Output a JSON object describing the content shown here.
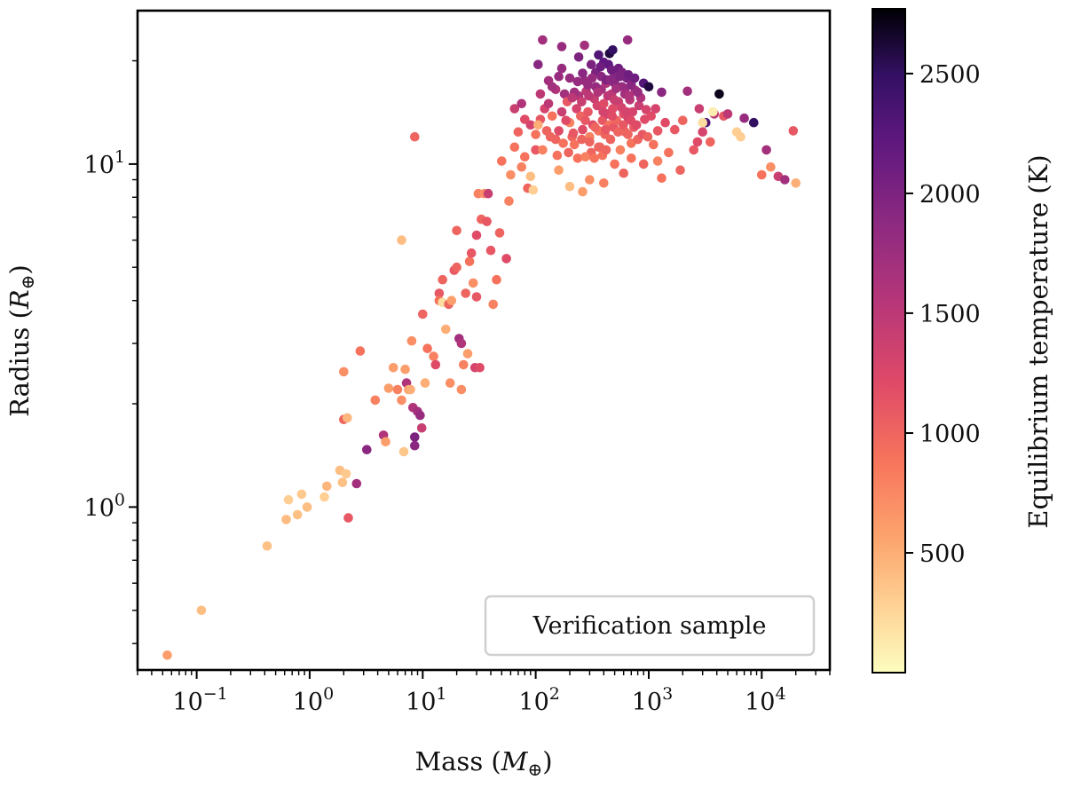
{
  "chart_data": {
    "type": "scatter",
    "title": "",
    "xlabel": "Mass (M⊕)",
    "ylabel": "Radius (R⊕)",
    "xlabel_base": "Mass (",
    "xlabel_symbol": "M",
    "xlabel_sub": "⊕",
    "xlabel_close": ")",
    "ylabel_base": "Radius (",
    "ylabel_symbol": "R",
    "ylabel_sub": "⊕",
    "ylabel_close": ")",
    "xscale": "log",
    "yscale": "log",
    "xlim": [
      0.03,
      40000
    ],
    "ylim": [
      0.335,
      28
    ],
    "x_ticks": [
      {
        "base": "10",
        "exp": "−1",
        "value": 0.1
      },
      {
        "base": "10",
        "exp": "0",
        "value": 1
      },
      {
        "base": "10",
        "exp": "1",
        "value": 10
      },
      {
        "base": "10",
        "exp": "2",
        "value": 100
      },
      {
        "base": "10",
        "exp": "3",
        "value": 1000
      },
      {
        "base": "10",
        "exp": "4",
        "value": 10000
      }
    ],
    "y_ticks": [
      {
        "base": "10",
        "exp": "0",
        "value": 1
      },
      {
        "base": "10",
        "exp": "1",
        "value": 10
      }
    ],
    "legend": {
      "label": "Verification sample",
      "location": "lower-right"
    },
    "colorbar": {
      "label": "Equilibrium temperature (K)",
      "colormap": "magma_r",
      "range": [
        0,
        2770
      ],
      "ticks": [
        500,
        1000,
        1500,
        2000,
        2500
      ],
      "tick_labels": [
        "500",
        "1000",
        "1500",
        "2000",
        "2500"
      ]
    },
    "points": [
      [
        0.055,
        0.37,
        600
      ],
      [
        0.11,
        0.5,
        400
      ],
      [
        0.42,
        0.77,
        380
      ],
      [
        0.62,
        0.92,
        420
      ],
      [
        0.65,
        1.05,
        300
      ],
      [
        0.78,
        0.95,
        380
      ],
      [
        0.85,
        1.09,
        330
      ],
      [
        0.95,
        1.0,
        400
      ],
      [
        1.35,
        1.07,
        300
      ],
      [
        1.42,
        1.15,
        450
      ],
      [
        1.85,
        1.28,
        400
      ],
      [
        1.95,
        1.18,
        380
      ],
      [
        2.1,
        1.25,
        330
      ],
      [
        2.2,
        0.93,
        1100
      ],
      [
        2.6,
        1.17,
        1700
      ],
      [
        2.0,
        1.8,
        1000
      ],
      [
        2.15,
        1.82,
        450
      ],
      [
        3.2,
        1.47,
        1900
      ],
      [
        2.8,
        2.85,
        900
      ],
      [
        2.0,
        2.48,
        700
      ],
      [
        3.8,
        2.05,
        800
      ],
      [
        4.5,
        1.62,
        1600
      ],
      [
        4.7,
        1.55,
        600
      ],
      [
        5.0,
        2.22,
        600
      ],
      [
        5.5,
        2.55,
        600
      ],
      [
        6.0,
        2.2,
        800
      ],
      [
        6.5,
        2.05,
        700
      ],
      [
        6.8,
        1.45,
        350
      ],
      [
        7.0,
        2.52,
        600
      ],
      [
        7.2,
        2.3,
        1600
      ],
      [
        7.5,
        2.2,
        600
      ],
      [
        7.8,
        2.2,
        500
      ],
      [
        8.0,
        3.05,
        700
      ],
      [
        8.2,
        1.95,
        1600
      ],
      [
        8.5,
        1.6,
        2000
      ],
      [
        8.5,
        1.51,
        1900
      ],
      [
        9.0,
        1.9,
        1700
      ],
      [
        9.5,
        1.85,
        1800
      ],
      [
        9.8,
        1.7,
        1400
      ],
      [
        10.5,
        2.3,
        500
      ],
      [
        6.5,
        6.0,
        400
      ],
      [
        10.0,
        3.65,
        1000
      ],
      [
        11.0,
        2.9,
        900
      ],
      [
        12.5,
        2.75,
        800
      ],
      [
        13.0,
        2.6,
        1200
      ],
      [
        14.0,
        4.2,
        1100
      ],
      [
        14.0,
        4.0,
        900
      ],
      [
        15.0,
        3.95,
        200
      ],
      [
        15.0,
        4.6,
        1000
      ],
      [
        16.0,
        3.3,
        500
      ],
      [
        17.0,
        3.9,
        1000
      ],
      [
        17.5,
        2.3,
        700
      ],
      [
        18.0,
        4.0,
        600
      ],
      [
        19.0,
        4.9,
        1100
      ],
      [
        20.0,
        5.0,
        1000
      ],
      [
        20.0,
        6.4,
        1000
      ],
      [
        21.0,
        3.1,
        1700
      ],
      [
        22.0,
        3.0,
        1600
      ],
      [
        22.0,
        2.2,
        700
      ],
      [
        23.0,
        2.6,
        800
      ],
      [
        24.0,
        4.2,
        1000
      ],
      [
        25.0,
        2.8,
        600
      ],
      [
        26.0,
        5.2,
        900
      ],
      [
        27.0,
        5.5,
        1100
      ],
      [
        28.0,
        4.5,
        700
      ],
      [
        29.0,
        2.55,
        1300
      ],
      [
        30.0,
        4.1,
        1100
      ],
      [
        30.0,
        6.2,
        1200
      ],
      [
        31.0,
        8.2,
        800
      ],
      [
        32.0,
        2.55,
        1200
      ],
      [
        33.0,
        6.9,
        1000
      ],
      [
        35.0,
        8.2,
        700
      ],
      [
        37.0,
        6.8,
        1100
      ],
      [
        38.0,
        8.2,
        1400
      ],
      [
        40.0,
        5.6,
        1100
      ],
      [
        42.0,
        3.9,
        800
      ],
      [
        45.0,
        4.6,
        900
      ],
      [
        48.0,
        6.3,
        1000
      ],
      [
        50.0,
        10.2,
        900
      ],
      [
        55.0,
        5.3,
        1200
      ],
      [
        58.0,
        7.8,
        800
      ],
      [
        60.0,
        9.3,
        700
      ],
      [
        65.0,
        11.2,
        900
      ],
      [
        70.0,
        12.4,
        1000
      ],
      [
        75.0,
        9.8,
        800
      ],
      [
        80.0,
        10.5,
        900
      ],
      [
        85.0,
        8.5,
        1000
      ],
      [
        90.0,
        9.2,
        400
      ],
      [
        95.0,
        8.4,
        300
      ],
      [
        100.0,
        11.0,
        1100
      ],
      [
        8.5,
        12.0,
        1000
      ],
      [
        65.0,
        14.5,
        1400
      ],
      [
        75.0,
        15.0,
        1600
      ],
      [
        80.0,
        13.5,
        1200
      ],
      [
        90.0,
        13.0,
        1300
      ],
      [
        110.0,
        13.5,
        1100
      ],
      [
        120.0,
        14.5,
        1300
      ],
      [
        130.0,
        15.0,
        1500
      ],
      [
        140.0,
        13.8,
        900
      ],
      [
        150.0,
        11.8,
        1000
      ],
      [
        160.0,
        12.5,
        1200
      ],
      [
        170.0,
        14.2,
        1400
      ],
      [
        180.0,
        16.0,
        1700
      ],
      [
        190.0,
        15.2,
        1100
      ],
      [
        200.0,
        13.2,
        800
      ],
      [
        210.0,
        12.0,
        1000
      ],
      [
        220.0,
        11.4,
        900
      ],
      [
        230.0,
        14.5,
        1300
      ],
      [
        240.0,
        15.8,
        1600
      ],
      [
        250.0,
        13.8,
        1000
      ],
      [
        260.0,
        12.6,
        1200
      ],
      [
        270.0,
        17.5,
        1800
      ],
      [
        280.0,
        16.3,
        1500
      ],
      [
        290.0,
        14.2,
        1100
      ],
      [
        300.0,
        12.0,
        800
      ],
      [
        310.0,
        10.8,
        1000
      ],
      [
        320.0,
        13.0,
        1200
      ],
      [
        330.0,
        15.5,
        1400
      ],
      [
        340.0,
        18.5,
        2000
      ],
      [
        350.0,
        14.8,
        1300
      ],
      [
        360.0,
        12.5,
        900
      ],
      [
        370.0,
        11.2,
        1000
      ],
      [
        380.0,
        16.5,
        1700
      ],
      [
        390.0,
        13.4,
        1100
      ],
      [
        400.0,
        15.0,
        1200
      ],
      [
        410.0,
        12.2,
        1000
      ],
      [
        420.0,
        17.2,
        1600
      ],
      [
        430.0,
        14.0,
        1300
      ],
      [
        440.0,
        19.5,
        2200
      ],
      [
        450.0,
        13.0,
        900
      ],
      [
        460.0,
        11.8,
        1000
      ],
      [
        470.0,
        16.0,
        1500
      ],
      [
        480.0,
        14.5,
        1200
      ],
      [
        490.0,
        12.8,
        1100
      ],
      [
        500.0,
        18.2,
        1900
      ],
      [
        520.0,
        13.4,
        1000
      ],
      [
        540.0,
        15.2,
        1400
      ],
      [
        560.0,
        11.0,
        800
      ],
      [
        580.0,
        16.8,
        1800
      ],
      [
        600.0,
        14.0,
        1200
      ],
      [
        620.0,
        12.4,
        1000
      ],
      [
        640.0,
        17.8,
        2000
      ],
      [
        660.0,
        13.6,
        1300
      ],
      [
        680.0,
        15.4,
        1500
      ],
      [
        700.0,
        11.5,
        900
      ],
      [
        720.0,
        14.2,
        1300
      ],
      [
        740.0,
        12.8,
        1100
      ],
      [
        760.0,
        16.4,
        1700
      ],
      [
        780.0,
        13.0,
        1200
      ],
      [
        800.0,
        11.8,
        1000
      ],
      [
        820.0,
        14.8,
        1400
      ],
      [
        850.0,
        15.6,
        1600
      ],
      [
        880.0,
        12.2,
        1100
      ],
      [
        900.0,
        17.2,
        2300
      ],
      [
        920.0,
        13.5,
        1200
      ],
      [
        950.0,
        14.4,
        1300
      ],
      [
        980.0,
        12.0,
        1000
      ],
      [
        1000.0,
        16.8,
        2600
      ],
      [
        1050.0,
        13.8,
        1200
      ],
      [
        1100.0,
        11.4,
        900
      ],
      [
        1150.0,
        14.5,
        1300
      ],
      [
        1200.0,
        12.5,
        1100
      ],
      [
        1300.0,
        16.2,
        1900
      ],
      [
        1400.0,
        13.2,
        1200
      ],
      [
        105.0,
        19.5,
        1900
      ],
      [
        130.0,
        17.5,
        1700
      ],
      [
        150.0,
        16.5,
        1600
      ],
      [
        170.0,
        19.0,
        1800
      ],
      [
        200.0,
        17.8,
        1800
      ],
      [
        220.0,
        16.2,
        1700
      ],
      [
        240.0,
        20.5,
        2000
      ],
      [
        260.0,
        18.4,
        1900
      ],
      [
        290.0,
        17.0,
        1800
      ],
      [
        310.0,
        19.5,
        2000
      ],
      [
        340.0,
        16.8,
        1800
      ],
      [
        360.0,
        20.8,
        2300
      ],
      [
        380.0,
        18.0,
        1900
      ],
      [
        400.0,
        19.8,
        2200
      ],
      [
        420.0,
        17.6,
        2000
      ],
      [
        450.0,
        21.0,
        2600
      ],
      [
        470.0,
        18.8,
        2100
      ],
      [
        500.0,
        17.2,
        1900
      ],
      [
        540.0,
        19.0,
        2100
      ],
      [
        580.0,
        18.5,
        2000
      ],
      [
        620.0,
        16.6,
        1800
      ],
      [
        660.0,
        18.2,
        2100
      ],
      [
        700.0,
        17.0,
        1900
      ],
      [
        750.0,
        17.8,
        2100
      ],
      [
        800.0,
        16.2,
        1800
      ],
      [
        115.0,
        23.0,
        1700
      ],
      [
        170.0,
        22.0,
        1800
      ],
      [
        270.0,
        22.2,
        1700
      ],
      [
        480.0,
        21.5,
        2500
      ],
      [
        650.0,
        23.0,
        1800
      ],
      [
        110.0,
        16.0,
        1500
      ],
      [
        125.0,
        12.5,
        1000
      ],
      [
        140.0,
        16.8,
        1700
      ],
      [
        160.0,
        18.0,
        1800
      ],
      [
        185.0,
        13.4,
        1200
      ],
      [
        210.0,
        15.6,
        1500
      ],
      [
        235.0,
        17.4,
        1800
      ],
      [
        255.0,
        15.2,
        1400
      ],
      [
        275.0,
        13.4,
        1100
      ],
      [
        295.0,
        15.8,
        1500
      ],
      [
        315.0,
        17.8,
        1800
      ],
      [
        335.0,
        12.8,
        1000
      ],
      [
        355.0,
        16.2,
        1600
      ],
      [
        375.0,
        19.2,
        2100
      ],
      [
        395.0,
        14.2,
        1300
      ],
      [
        415.0,
        12.6,
        1100
      ],
      [
        435.0,
        15.8,
        1500
      ],
      [
        455.0,
        17.6,
        1900
      ],
      [
        475.0,
        13.8,
        1200
      ],
      [
        495.0,
        15.4,
        1400
      ],
      [
        515.0,
        16.6,
        1700
      ],
      [
        535.0,
        12.4,
        1000
      ],
      [
        555.0,
        18.0,
        2000
      ],
      [
        575.0,
        14.6,
        1300
      ],
      [
        595.0,
        13.0,
        1100
      ],
      [
        615.0,
        16.0,
        1700
      ],
      [
        635.0,
        14.2,
        1300
      ],
      [
        655.0,
        12.2,
        1000
      ],
      [
        675.0,
        15.8,
        1600
      ],
      [
        695.0,
        13.4,
        1200
      ],
      [
        100.0,
        12.2,
        900
      ],
      [
        115.0,
        11.0,
        800
      ],
      [
        135.0,
        12.0,
        1000
      ],
      [
        155.0,
        10.6,
        900
      ],
      [
        175.0,
        11.5,
        900
      ],
      [
        195.0,
        10.8,
        1000
      ],
      [
        215.0,
        12.3,
        1100
      ],
      [
        235.0,
        10.4,
        900
      ],
      [
        255.0,
        11.8,
        1000
      ],
      [
        275.0,
        10.5,
        800
      ],
      [
        300.0,
        11.6,
        1000
      ],
      [
        330.0,
        10.4,
        900
      ],
      [
        360.0,
        11.2,
        1000
      ],
      [
        390.0,
        10.6,
        900
      ],
      [
        420.0,
        11.0,
        1000
      ],
      [
        105.0,
        13.0,
        500
      ],
      [
        160.0,
        9.6,
        600
      ],
      [
        200.0,
        8.6,
        400
      ],
      [
        260.0,
        8.3,
        600
      ],
      [
        300.0,
        9.0,
        700
      ],
      [
        400.0,
        8.8,
        800
      ],
      [
        500.0,
        10.0,
        900
      ],
      [
        600.0,
        9.4,
        1000
      ],
      [
        700.0,
        10.4,
        900
      ],
      [
        900.0,
        10.0,
        1000
      ],
      [
        1200.0,
        10.2,
        800
      ],
      [
        1300.0,
        9.1,
        900
      ],
      [
        1500.0,
        10.8,
        900
      ],
      [
        1700.0,
        12.6,
        1100
      ],
      [
        1900.0,
        9.6,
        1000
      ],
      [
        2000.0,
        13.4,
        1000
      ],
      [
        2200.0,
        16.3,
        1700
      ],
      [
        2500.0,
        11.0,
        1100
      ],
      [
        2800.0,
        14.5,
        1400
      ],
      [
        3000.0,
        12.4,
        1300
      ],
      [
        3200.0,
        13.2,
        2300
      ],
      [
        3500.0,
        11.6,
        1000
      ],
      [
        3800.0,
        14.0,
        1500
      ],
      [
        4200.0,
        16.0,
        2700
      ],
      [
        4600.0,
        13.8,
        1100
      ],
      [
        5000.0,
        14.0,
        1500
      ],
      [
        6000.0,
        12.4,
        300
      ],
      [
        7000.0,
        13.6,
        1800
      ],
      [
        8500.0,
        13.2,
        2500
      ],
      [
        10000.0,
        9.3,
        900
      ],
      [
        11000.0,
        11.0,
        1700
      ],
      [
        12000.0,
        9.8,
        700
      ],
      [
        14000.0,
        9.2,
        1400
      ],
      [
        16000.0,
        9.0,
        1700
      ],
      [
        19000.0,
        12.5,
        1100
      ],
      [
        20000.0,
        8.8,
        500
      ],
      [
        3000.0,
        13.2,
        200
      ],
      [
        3700.0,
        14.2,
        100
      ],
      [
        6500.0,
        12.0,
        300
      ],
      [
        2700.0,
        11.6,
        1200
      ]
    ]
  }
}
